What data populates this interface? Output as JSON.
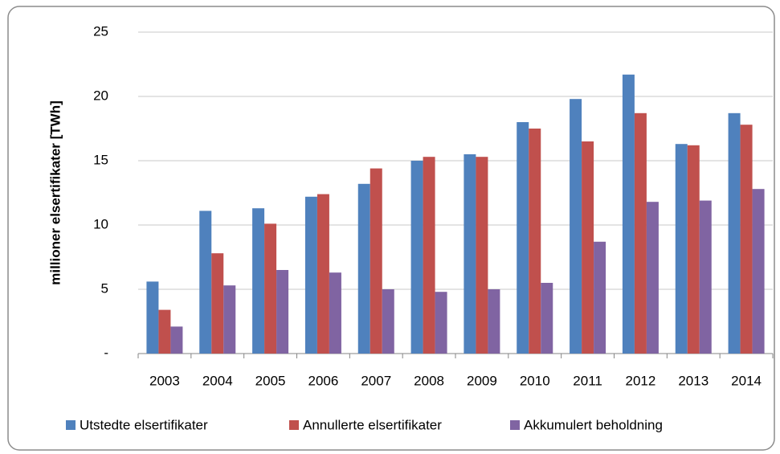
{
  "chart_data": {
    "type": "bar",
    "y_label": "millioner elsertifikater [TWh]",
    "categories": [
      "2003",
      "2004",
      "2005",
      "2006",
      "2007",
      "2008",
      "2009",
      "2010",
      "2011",
      "2012",
      "2013",
      "2014"
    ],
    "series": [
      {
        "name": "Utstedte elsertifikater",
        "color": "#4f81bd",
        "values": [
          5.6,
          11.1,
          11.3,
          12.2,
          13.2,
          15.0,
          15.5,
          18.0,
          19.8,
          21.7,
          16.3,
          18.7
        ]
      },
      {
        "name": "Annullerte elsertifikater",
        "color": "#c0504d",
        "values": [
          3.4,
          7.8,
          10.1,
          12.4,
          14.4,
          15.3,
          15.3,
          17.5,
          16.5,
          18.7,
          16.2,
          17.8
        ]
      },
      {
        "name": "Akkumulert beholdning",
        "color": "#8064a2",
        "values": [
          2.1,
          5.3,
          6.5,
          6.3,
          5.0,
          4.8,
          5.0,
          5.5,
          8.7,
          11.8,
          11.9,
          12.8
        ]
      }
    ],
    "ylim": [
      0,
      25
    ],
    "yticks": [
      {
        "value": 0,
        "label": "-"
      },
      5,
      10,
      15,
      20,
      25
    ],
    "grid": true,
    "legend": "bottom"
  }
}
